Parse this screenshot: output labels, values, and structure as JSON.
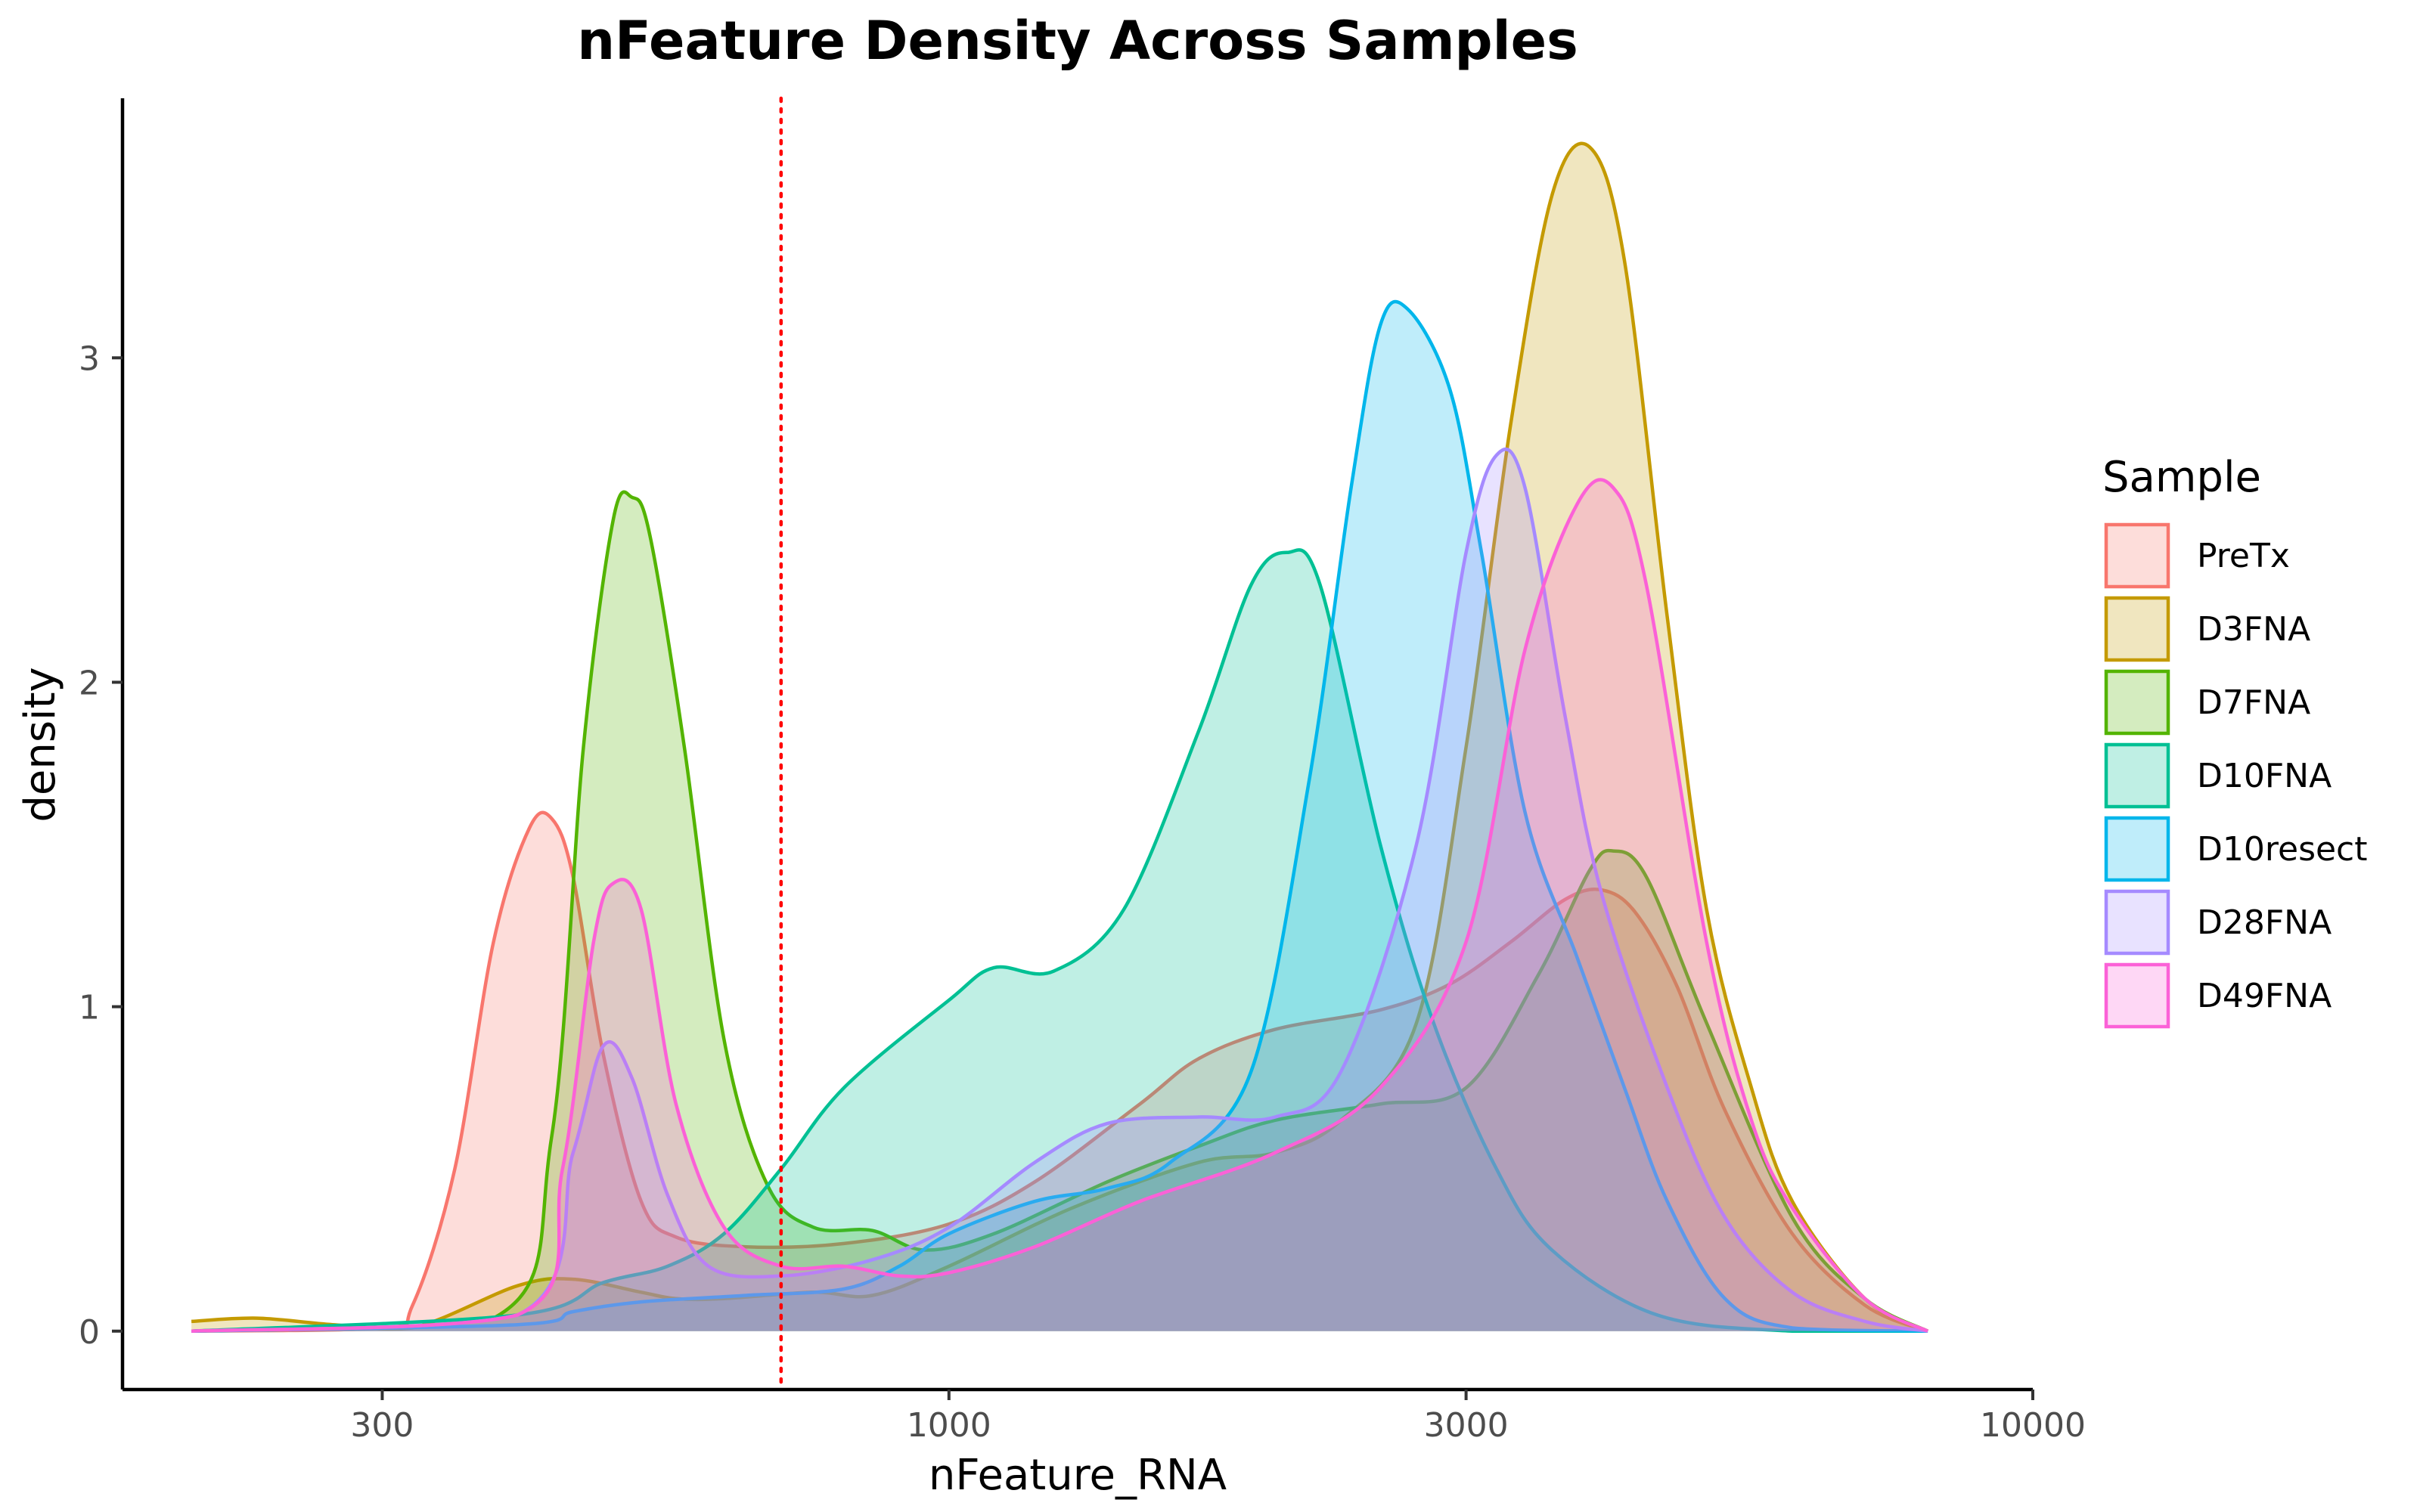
{
  "chart_data": {
    "type": "area",
    "subtype": "density",
    "title": "nFeature Density Across Samples",
    "xlabel": "nFeature_RNA",
    "ylabel": "density",
    "x_scale": "log10",
    "xlim": [
      200,
      8000
    ],
    "ylim": [
      -0.18,
      3.8
    ],
    "x_ticks": [
      300,
      1000,
      3000,
      10000
    ],
    "x_tick_labels": [
      "300",
      "1000",
      "3000",
      "10000"
    ],
    "y_ticks": [
      0,
      1,
      2,
      3
    ],
    "y_tick_labels": [
      "0",
      "1",
      "2",
      "3"
    ],
    "grid": false,
    "threshold_line": {
      "x": 700,
      "color": "#FF0000",
      "style": "dotted"
    },
    "legend": {
      "title": "Sample",
      "position": "right"
    },
    "fill_opacity": 0.25,
    "series": [
      {
        "name": "PreTx",
        "color": "#F8766D",
        "points": [
          [
            200,
            0
          ],
          [
            300,
            0.01
          ],
          [
            320,
            0.08
          ],
          [
            350,
            0.5
          ],
          [
            380,
            1.2
          ],
          [
            410,
            1.55
          ],
          [
            430,
            1.58
          ],
          [
            450,
            1.4
          ],
          [
            480,
            0.85
          ],
          [
            520,
            0.4
          ],
          [
            560,
            0.29
          ],
          [
            650,
            0.26
          ],
          [
            800,
            0.27
          ],
          [
            1000,
            0.33
          ],
          [
            1200,
            0.46
          ],
          [
            1500,
            0.7
          ],
          [
            1700,
            0.84
          ],
          [
            2000,
            0.93
          ],
          [
            2500,
            0.99
          ],
          [
            2900,
            1.07
          ],
          [
            3300,
            1.2
          ],
          [
            3700,
            1.33
          ],
          [
            4000,
            1.36
          ],
          [
            4300,
            1.29
          ],
          [
            4700,
            1.06
          ],
          [
            5200,
            0.68
          ],
          [
            6000,
            0.3
          ],
          [
            7000,
            0.08
          ],
          [
            8000,
            0
          ]
        ]
      },
      {
        "name": "D3FNA",
        "color": "#C49A00",
        "points": [
          [
            200,
            0.03
          ],
          [
            230,
            0.04
          ],
          [
            270,
            0.02
          ],
          [
            320,
            0.01
          ],
          [
            400,
            0.14
          ],
          [
            450,
            0.16
          ],
          [
            520,
            0.12
          ],
          [
            560,
            0.1
          ],
          [
            620,
            0.1
          ],
          [
            750,
            0.12
          ],
          [
            850,
            0.11
          ],
          [
            1000,
            0.2
          ],
          [
            1300,
            0.38
          ],
          [
            1700,
            0.52
          ],
          [
            2000,
            0.55
          ],
          [
            2300,
            0.65
          ],
          [
            2700,
            0.95
          ],
          [
            3000,
            1.8
          ],
          [
            3300,
            2.8
          ],
          [
            3600,
            3.5
          ],
          [
            3900,
            3.65
          ],
          [
            4200,
            3.3
          ],
          [
            4600,
            2.2
          ],
          [
            5000,
            1.3
          ],
          [
            5500,
            0.75
          ],
          [
            6000,
            0.4
          ],
          [
            7000,
            0.1
          ],
          [
            8000,
            0
          ]
        ]
      },
      {
        "name": "D7FNA",
        "color": "#53B400",
        "points": [
          [
            200,
            0
          ],
          [
            380,
            0.04
          ],
          [
            430,
            0.6
          ],
          [
            460,
            1.8
          ],
          [
            490,
            2.5
          ],
          [
            510,
            2.57
          ],
          [
            530,
            2.45
          ],
          [
            570,
            1.8
          ],
          [
            620,
            0.9
          ],
          [
            680,
            0.45
          ],
          [
            750,
            0.32
          ],
          [
            850,
            0.31
          ],
          [
            950,
            0.25
          ],
          [
            1100,
            0.3
          ],
          [
            1400,
            0.46
          ],
          [
            1700,
            0.57
          ],
          [
            2000,
            0.65
          ],
          [
            2500,
            0.7
          ],
          [
            3000,
            0.75
          ],
          [
            3500,
            1.1
          ],
          [
            3900,
            1.42
          ],
          [
            4100,
            1.48
          ],
          [
            4400,
            1.4
          ],
          [
            5000,
            0.95
          ],
          [
            6000,
            0.35
          ],
          [
            7000,
            0.1
          ],
          [
            8000,
            0
          ]
        ]
      },
      {
        "name": "D10FNA",
        "color": "#00C094",
        "points": [
          [
            200,
            0
          ],
          [
            400,
            0.05
          ],
          [
            480,
            0.15
          ],
          [
            550,
            0.2
          ],
          [
            620,
            0.3
          ],
          [
            700,
            0.5
          ],
          [
            800,
            0.75
          ],
          [
            1000,
            1.02
          ],
          [
            1100,
            1.12
          ],
          [
            1250,
            1.11
          ],
          [
            1450,
            1.3
          ],
          [
            1700,
            1.85
          ],
          [
            1900,
            2.3
          ],
          [
            2050,
            2.4
          ],
          [
            2200,
            2.3
          ],
          [
            2500,
            1.5
          ],
          [
            2800,
            0.95
          ],
          [
            3200,
            0.5
          ],
          [
            3600,
            0.25
          ],
          [
            4500,
            0.05
          ],
          [
            6000,
            0
          ],
          [
            8000,
            0
          ]
        ]
      },
      {
        "name": "D10resect",
        "color": "#00B6EB",
        "points": [
          [
            200,
            0
          ],
          [
            400,
            0.02
          ],
          [
            450,
            0.06
          ],
          [
            520,
            0.09
          ],
          [
            650,
            0.11
          ],
          [
            800,
            0.13
          ],
          [
            900,
            0.2
          ],
          [
            1000,
            0.3
          ],
          [
            1200,
            0.4
          ],
          [
            1400,
            0.44
          ],
          [
            1600,
            0.52
          ],
          [
            1900,
            0.8
          ],
          [
            2150,
            1.7
          ],
          [
            2350,
            2.6
          ],
          [
            2500,
            3.1
          ],
          [
            2650,
            3.15
          ],
          [
            2900,
            2.9
          ],
          [
            3100,
            2.4
          ],
          [
            3400,
            1.6
          ],
          [
            3800,
            1.15
          ],
          [
            4200,
            0.75
          ],
          [
            4600,
            0.4
          ],
          [
            5200,
            0.1
          ],
          [
            6000,
            0.01
          ],
          [
            8000,
            0
          ]
        ]
      },
      {
        "name": "D28FNA",
        "color": "#A58AFF",
        "points": [
          [
            200,
            0
          ],
          [
            400,
            0.05
          ],
          [
            450,
            0.55
          ],
          [
            480,
            0.88
          ],
          [
            510,
            0.78
          ],
          [
            550,
            0.42
          ],
          [
            600,
            0.2
          ],
          [
            700,
            0.17
          ],
          [
            850,
            0.22
          ],
          [
            1000,
            0.32
          ],
          [
            1200,
            0.52
          ],
          [
            1400,
            0.64
          ],
          [
            1700,
            0.66
          ],
          [
            2000,
            0.66
          ],
          [
            2300,
            0.8
          ],
          [
            2700,
            1.5
          ],
          [
            3000,
            2.4
          ],
          [
            3200,
            2.7
          ],
          [
            3400,
            2.6
          ],
          [
            3700,
            1.9
          ],
          [
            4000,
            1.35
          ],
          [
            4600,
            0.75
          ],
          [
            5200,
            0.35
          ],
          [
            6000,
            0.12
          ],
          [
            7000,
            0.03
          ],
          [
            8000,
            0
          ]
        ]
      },
      {
        "name": "D49FNA",
        "color": "#FB61D7",
        "points": [
          [
            200,
            0
          ],
          [
            400,
            0.05
          ],
          [
            440,
            0.5
          ],
          [
            470,
            1.2
          ],
          [
            490,
            1.38
          ],
          [
            520,
            1.3
          ],
          [
            560,
            0.7
          ],
          [
            620,
            0.32
          ],
          [
            700,
            0.2
          ],
          [
            800,
            0.2
          ],
          [
            900,
            0.17
          ],
          [
            1000,
            0.18
          ],
          [
            1200,
            0.26
          ],
          [
            1500,
            0.4
          ],
          [
            2000,
            0.55
          ],
          [
            2500,
            0.75
          ],
          [
            3000,
            1.2
          ],
          [
            3400,
            2.1
          ],
          [
            3800,
            2.55
          ],
          [
            4100,
            2.6
          ],
          [
            4400,
            2.3
          ],
          [
            5000,
            1.2
          ],
          [
            5500,
            0.65
          ],
          [
            6000,
            0.38
          ],
          [
            7000,
            0.1
          ],
          [
            8000,
            0
          ]
        ]
      }
    ]
  }
}
